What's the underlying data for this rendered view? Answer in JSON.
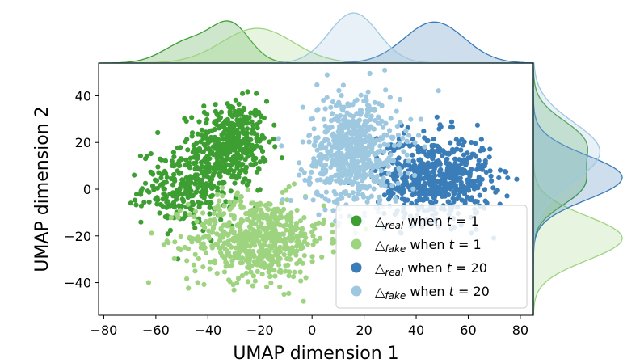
{
  "chart_data": {
    "type": "scatter",
    "title": "",
    "xlabel": "UMAP dimension 1",
    "ylabel": "UMAP dimension 2",
    "xlim": [
      -82,
      85
    ],
    "ylim": [
      -54,
      54
    ],
    "xticks": [
      -80,
      -60,
      -40,
      -20,
      0,
      20,
      40,
      60,
      80
    ],
    "yticks": [
      -40,
      -20,
      0,
      20,
      40
    ],
    "xtick_labels": [
      "−80",
      "−60",
      "−40",
      "−20",
      "0",
      "20",
      "40",
      "60",
      "80"
    ],
    "ytick_labels": [
      "−40",
      "−20",
      "0",
      "20",
      "40"
    ],
    "legend_position": "lower-right",
    "marginal_density": {
      "top": true,
      "right": true
    },
    "series": [
      {
        "name": "real-t1",
        "symbol": "△",
        "subscript": "real",
        "label_mid": "when",
        "variable": "t",
        "label_eq": " = 1",
        "color": "#3d9e32",
        "clusters": [
          {
            "cx": -31,
            "cy": 20,
            "sx": 7,
            "sy": 9,
            "n": 380
          },
          {
            "cx": -47,
            "cy": 1,
            "sx": 9,
            "sy": 8,
            "n": 300
          }
        ]
      },
      {
        "name": "fake-t1",
        "symbol": "△",
        "subscript": "fake",
        "label_mid": "when",
        "variable": "t",
        "label_eq": " = 1",
        "color": "#9ed47f",
        "clusters": [
          {
            "cx": -21,
            "cy": -21,
            "sx": 13,
            "sy": 9,
            "n": 620
          }
        ]
      },
      {
        "name": "real-t20",
        "symbol": "△",
        "subscript": "real",
        "label_mid": "when",
        "variable": "t",
        "label_eq": " = 20",
        "color": "#3a7db8",
        "clusters": [
          {
            "cx": 47,
            "cy": 5,
            "sx": 11,
            "sy": 9,
            "n": 600
          }
        ]
      },
      {
        "name": "fake-t20",
        "symbol": "△",
        "subscript": "fake",
        "label_mid": "when",
        "variable": "t",
        "label_eq": " = 20",
        "color": "#9ec8e0",
        "clusters": [
          {
            "cx": 16,
            "cy": 16,
            "sx": 9,
            "sy": 12,
            "n": 650
          }
        ]
      }
    ]
  }
}
